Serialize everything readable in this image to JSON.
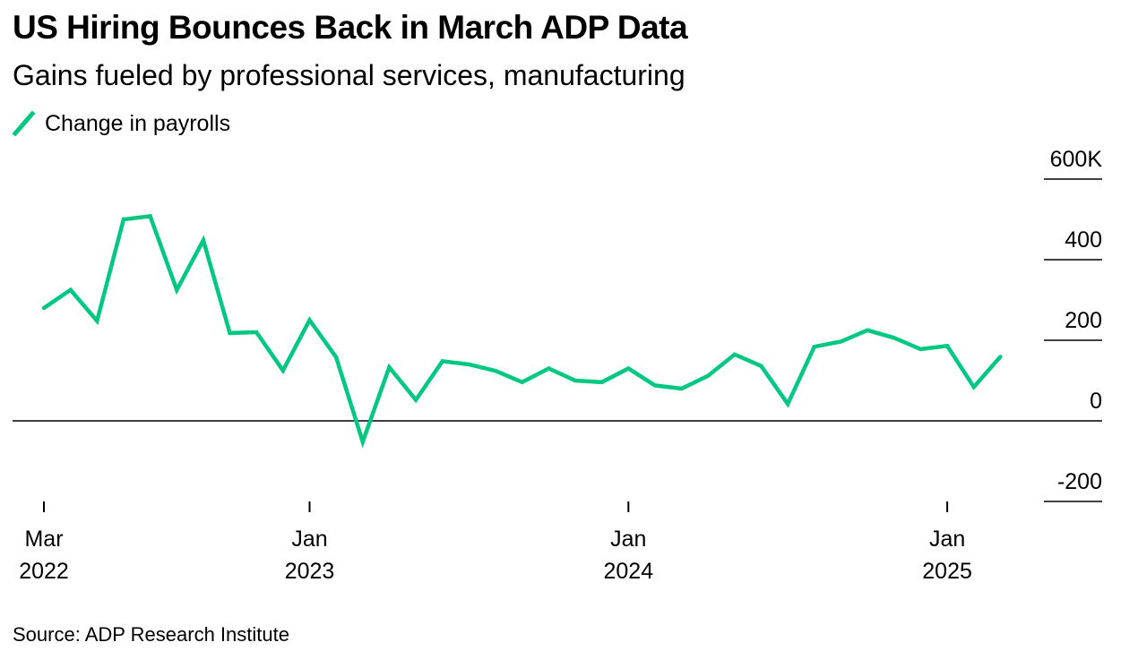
{
  "header": {
    "title": "US Hiring Bounces Back in March ADP Data",
    "subtitle": "Gains fueled by professional services, manufacturing"
  },
  "legend": {
    "label": "Change in payrolls",
    "color": "#00c781"
  },
  "footer": {
    "source": "Source: ADP Research Institute"
  },
  "chart_data": {
    "type": "line",
    "x": [
      "2022-03",
      "2022-04",
      "2022-05",
      "2022-06",
      "2022-07",
      "2022-08",
      "2022-09",
      "2022-10",
      "2022-11",
      "2022-12",
      "2023-01",
      "2023-02",
      "2023-03",
      "2023-04",
      "2023-05",
      "2023-06",
      "2023-07",
      "2023-08",
      "2023-09",
      "2023-10",
      "2023-11",
      "2023-12",
      "2024-01",
      "2024-02",
      "2024-03",
      "2024-04",
      "2024-05",
      "2024-06",
      "2024-07",
      "2024-08",
      "2024-09",
      "2024-10",
      "2024-11",
      "2024-12",
      "2025-01",
      "2025-02",
      "2025-03"
    ],
    "series": [
      {
        "name": "Change in payrolls",
        "color": "#00c781",
        "values": [
          280,
          325,
          248,
          500,
          508,
          325,
          448,
          218,
          220,
          125,
          250,
          158,
          -52,
          133,
          52,
          148,
          140,
          124,
          96,
          130,
          100,
          96,
          130,
          88,
          80,
          112,
          165,
          136,
          42,
          184,
          197,
          225,
          206,
          178,
          186,
          84,
          159
        ]
      }
    ],
    "yticks": [
      -200,
      0,
      200,
      400,
      600
    ],
    "ytick_labels": [
      "-200",
      "0",
      "200",
      "400",
      "600K"
    ],
    "ylim": [
      -200,
      600
    ],
    "xticks": [
      {
        "x": "2022-03",
        "month": "Mar",
        "year": "2022"
      },
      {
        "x": "2023-01",
        "month": "Jan",
        "year": "2023"
      },
      {
        "x": "2024-01",
        "month": "Jan",
        "year": "2024"
      },
      {
        "x": "2025-01",
        "month": "Jan",
        "year": "2025"
      }
    ],
    "xlabel": "",
    "ylabel": "",
    "grid": false,
    "y_axis_position": "right",
    "legend_position": "top-left"
  }
}
